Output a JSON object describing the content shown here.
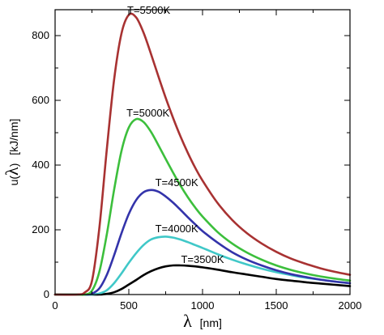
{
  "chart_data": {
    "type": "line",
    "xlabel": {
      "symbol": "λ",
      "unit": "[nm]"
    },
    "ylabel": {
      "prefix": "u(",
      "symbol": "λ",
      "suffix": ")",
      "unit": "[kJ/nm]"
    },
    "xlim": [
      0,
      2000
    ],
    "ylim": [
      0,
      880
    ],
    "xticks": [
      0,
      500,
      1000,
      1500,
      2000
    ],
    "yticks": [
      0,
      200,
      400,
      600,
      800
    ],
    "grid": false,
    "legend": "none",
    "x": [
      150,
      200,
      250,
      300,
      350,
      400,
      450,
      500,
      550,
      600,
      650,
      700,
      750,
      800,
      850,
      900,
      950,
      1000,
      1100,
      1200,
      1300,
      1400,
      1500,
      1600,
      1700,
      1800,
      1900,
      2000
    ],
    "series": [
      {
        "label_text": "T=3500K",
        "temperature": 3500,
        "color": "#000000",
        "label_at": [
          1000,
          110
        ],
        "values": [
          0,
          0,
          0,
          0,
          2,
          7,
          17,
          31,
          45,
          60,
          72,
          81,
          87,
          90,
          90,
          89,
          87,
          84,
          77,
          69,
          62,
          55,
          48,
          43,
          38,
          34,
          30,
          26
        ]
      },
      {
        "label_text": "T=4000K",
        "temperature": 4000,
        "color": "#40c8c8",
        "label_at": [
          825,
          205
        ],
        "values": [
          0,
          0,
          0,
          3,
          13,
          35,
          65,
          98,
          128,
          153,
          170,
          177,
          179,
          176,
          170,
          162,
          153,
          144,
          125,
          108,
          93,
          80,
          69,
          60,
          52,
          46,
          40,
          35
        ]
      },
      {
        "label_text": "T=4500K",
        "temperature": 4500,
        "color": "#3333aa",
        "label_at": [
          825,
          347
        ],
        "values": [
          0,
          0,
          3,
          19,
          60,
          121,
          189,
          249,
          292,
          316,
          323,
          318,
          303,
          284,
          262,
          239,
          217,
          196,
          161,
          131,
          108,
          90,
          75,
          63,
          54,
          46,
          40,
          35
        ]
      },
      {
        "label_text": "T=5000K",
        "temperature": 5000,
        "color": "#3cbf3c",
        "label_at": [
          630,
          563
        ],
        "values": [
          0,
          0,
          12,
          70,
          184,
          323,
          443,
          516,
          542,
          533,
          503,
          462,
          419,
          377,
          337,
          301,
          269,
          241,
          194,
          158,
          130,
          108,
          90,
          76,
          65,
          56,
          49,
          43
        ]
      },
      {
        "label_text": "T=5500K",
        "temperature": 5500,
        "color": "#a83232",
        "label_at": [
          635,
          880
        ],
        "values": [
          0,
          6,
          42,
          205,
          445,
          663,
          806,
          864,
          856,
          809,
          744,
          675,
          608,
          546,
          489,
          438,
          392,
          352,
          284,
          231,
          190,
          158,
          132,
          111,
          95,
          81,
          70,
          61
        ]
      }
    ]
  }
}
